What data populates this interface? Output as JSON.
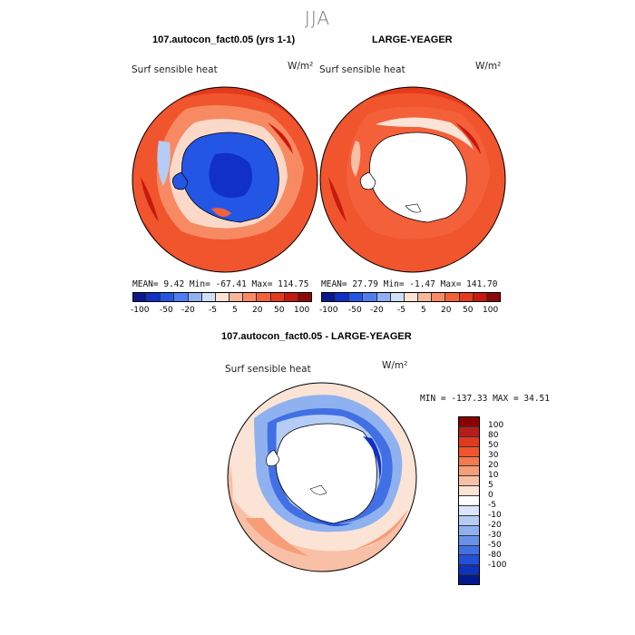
{
  "season": "JJA",
  "panels": {
    "left": {
      "title": "107.autocon_fact0.05 (yrs 1-1)",
      "subtitle": "Surf sensible heat",
      "unit": "W/m²",
      "stats": "MEAN=   9.42  Min= -67.41  Max= 114.75"
    },
    "right": {
      "title": "LARGE-YEAGER",
      "subtitle": "Surf sensible heat",
      "unit": "W/m²",
      "stats": "MEAN=  27.79  Min=  -1.47  Max= 141.70"
    },
    "diff": {
      "title": "107.autocon_fact0.05 - LARGE-YEAGER",
      "subtitle": "Surf sensible heat",
      "unit": "W/m²",
      "stats": "MIN = -137.33 MAX =  34.51"
    }
  },
  "colorbar_top": {
    "colors": [
      "#0a1a8c",
      "#1030c8",
      "#2456e6",
      "#4f7ef0",
      "#8fb0f2",
      "#cfe0f8",
      "#fde3d5",
      "#f8b69a",
      "#f78a63",
      "#f4603a",
      "#e53a1c",
      "#c7190e",
      "#8b0a0a"
    ],
    "tick_labels": [
      "-100",
      "-50",
      "-20",
      "-5",
      "5",
      "20",
      "50",
      "100"
    ]
  },
  "colorbar_diff": {
    "colors": [
      "#8b0000",
      "#b71c1c",
      "#e03a1e",
      "#f0552e",
      "#f47a4f",
      "#f79d77",
      "#f8c0a6",
      "#fbe3d6",
      "#ffffff",
      "#d9e6fb",
      "#b5cdf5",
      "#8fb1f0",
      "#6792ea",
      "#4070e3",
      "#2250d8",
      "#0f32b8",
      "#001a8e"
    ],
    "labels": [
      "100",
      "80",
      "50",
      "30",
      "20",
      "10",
      "5",
      "0",
      "-5",
      "-10",
      "-20",
      "-30",
      "-50",
      "-80",
      "-100"
    ]
  }
}
